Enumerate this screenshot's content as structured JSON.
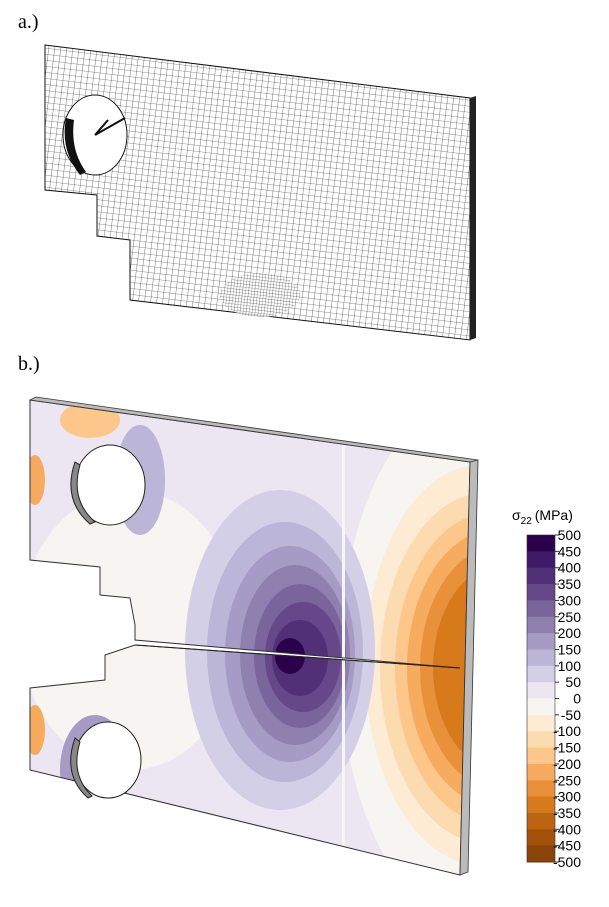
{
  "panels": {
    "a": {
      "label": "a.)"
    },
    "b": {
      "label": "b.)"
    }
  },
  "colorbar": {
    "symbol": "σ",
    "subscript": "22",
    "unit": "(MPa)",
    "ticks": [
      500,
      450,
      400,
      350,
      300,
      250,
      200,
      150,
      100,
      50,
      0,
      -50,
      -100,
      -150,
      -200,
      -250,
      -300,
      -350,
      -400,
      -450,
      -500
    ],
    "colors": [
      "#2d004b",
      "#3f1a66",
      "#523078",
      "#65478a",
      "#7a649c",
      "#8f80b0",
      "#a59bc4",
      "#bbb5d7",
      "#d3cfe6",
      "#ebe6f1",
      "#f7f5f2",
      "#fdebd4",
      "#fddbb0",
      "#fdc68a",
      "#f6ab5f",
      "#e8913a",
      "#d67a1c",
      "#bd6410",
      "#a4520b",
      "#8a4309"
    ]
  }
}
